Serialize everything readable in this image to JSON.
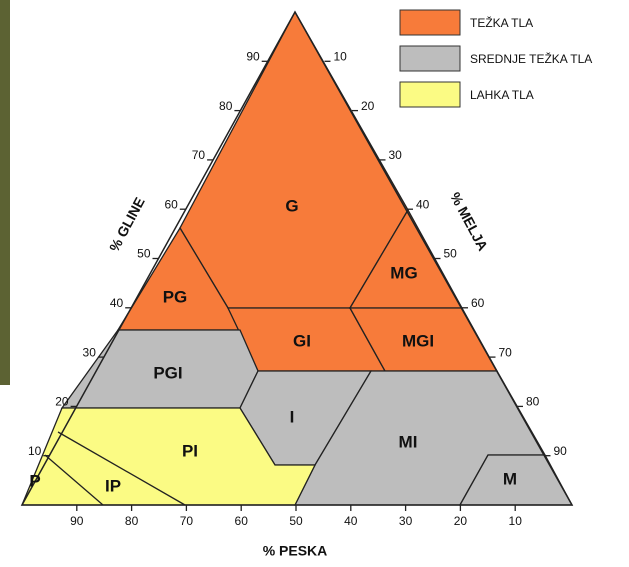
{
  "legend": [
    {
      "label": "TEŽKA TLA"
    },
    {
      "label": "SREDNJE TEŽKA TLA"
    },
    {
      "label": "LAHKA TLA"
    }
  ],
  "axes": {
    "clay": {
      "title": "% GLINE",
      "ticks": [
        90,
        80,
        70,
        60,
        50,
        40,
        30,
        20,
        10
      ]
    },
    "silt": {
      "title": "% MELJA",
      "ticks": [
        10,
        20,
        30,
        40,
        50,
        60,
        70,
        80,
        90
      ]
    },
    "sand": {
      "title": "% PESKA",
      "ticks": [
        90,
        80,
        70,
        60,
        50,
        40,
        30,
        20,
        10
      ]
    }
  },
  "regions": [
    {
      "label": "G"
    },
    {
      "label": "PG"
    },
    {
      "label": "GI"
    },
    {
      "label": "MG"
    },
    {
      "label": "MGI"
    },
    {
      "label": "PGI"
    },
    {
      "label": "I"
    },
    {
      "label": "PI"
    },
    {
      "label": "MI"
    },
    {
      "label": "P"
    },
    {
      "label": "IP"
    },
    {
      "label": "M"
    }
  ]
}
